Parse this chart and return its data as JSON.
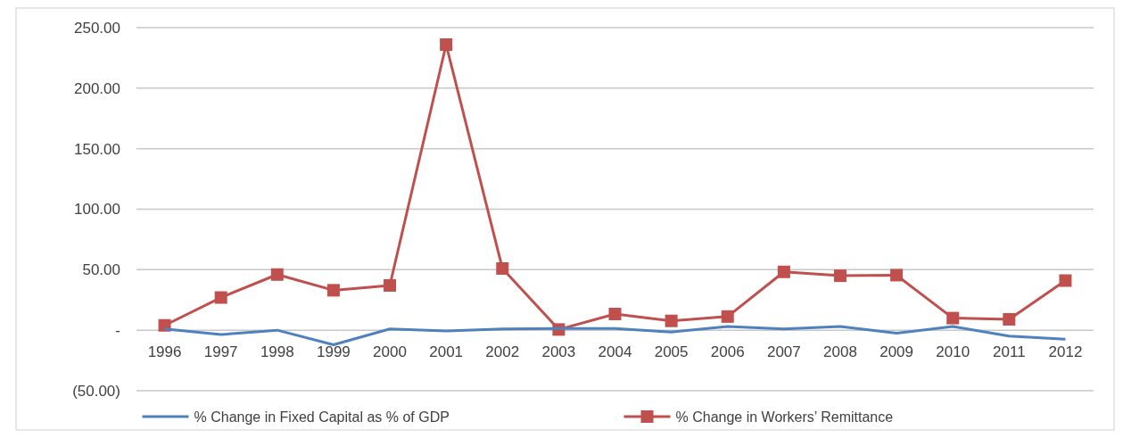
{
  "chart_data": {
    "type": "line",
    "categories": [
      "1996",
      "1997",
      "1998",
      "1999",
      "2000",
      "2001",
      "2002",
      "2003",
      "2004",
      "2005",
      "2006",
      "2007",
      "2008",
      "2009",
      "2010",
      "2011",
      "2012"
    ],
    "series": [
      {
        "name": "% Change in Fixed Capital as % of GDP",
        "color": "#4f81bd",
        "marker": "none",
        "values": [
          1,
          -3.6,
          0,
          -12,
          1,
          -0.6,
          1,
          1.5,
          1.5,
          -1.5,
          3,
          1,
          3,
          -2.4,
          3,
          -4.8,
          -7.4
        ]
      },
      {
        "name": "% Change in Workers’ Remittance",
        "color": "#c0504d",
        "marker": "square",
        "values": [
          4,
          27,
          46,
          33,
          37,
          236,
          51,
          0.6,
          13.4,
          7.7,
          11.3,
          48.2,
          45,
          45.5,
          10,
          9,
          41
        ]
      }
    ],
    "ylim": [
      -50,
      250
    ],
    "yticks": [
      {
        "value": -50,
        "label": "(50.00)"
      },
      {
        "value": 0,
        "label": "-"
      },
      {
        "value": 50,
        "label": "50.00"
      },
      {
        "value": 100,
        "label": "100.00"
      },
      {
        "value": 150,
        "label": "150.00"
      },
      {
        "value": 200,
        "label": "200.00"
      },
      {
        "value": 250,
        "label": "250.00"
      }
    ],
    "grid": "y",
    "legend": "bottom"
  }
}
